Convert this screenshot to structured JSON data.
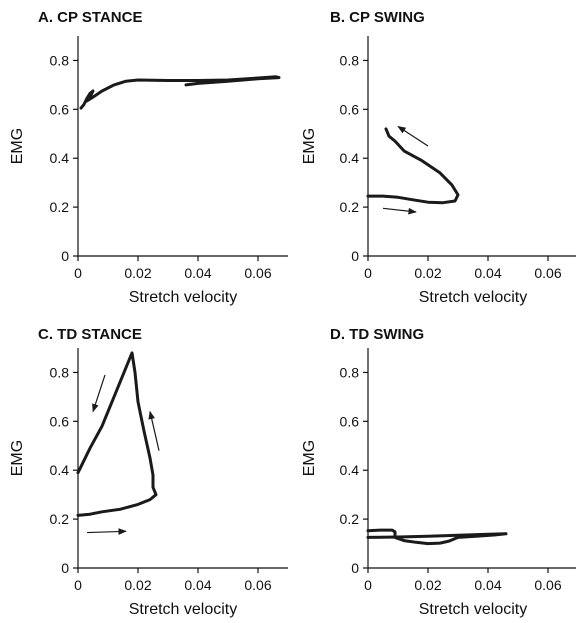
{
  "chart_data": [
    {
      "type": "line",
      "title": "A. CP STANCE",
      "xlabel": "Stretch velocity",
      "ylabel": "EMG",
      "xlim": [
        0,
        0.07
      ],
      "ylim": [
        0,
        0.9
      ],
      "xticks": [
        "0",
        "0.02",
        "0.04",
        "0.06"
      ],
      "yticks": [
        "0",
        "0.2",
        "0.4",
        "0.6",
        "0.8"
      ],
      "series": [
        {
          "x": [
            0.001,
            0.002,
            0.003,
            0.004,
            0.005,
            0.004,
            0.003,
            0.005,
            0.008,
            0.012,
            0.016,
            0.02,
            0.03,
            0.04,
            0.05,
            0.06,
            0.066,
            0.067,
            0.06,
            0.05,
            0.04,
            0.036
          ],
          "y": [
            0.605,
            0.62,
            0.645,
            0.665,
            0.675,
            0.65,
            0.635,
            0.65,
            0.675,
            0.7,
            0.715,
            0.72,
            0.718,
            0.718,
            0.72,
            0.728,
            0.733,
            0.73,
            0.725,
            0.715,
            0.706,
            0.7
          ]
        }
      ],
      "arrows": []
    },
    {
      "type": "line",
      "title": "B. CP SWING",
      "xlabel": "Stretch velocity",
      "ylabel": "EMG",
      "xlim": [
        0,
        0.07
      ],
      "ylim": [
        0,
        0.9
      ],
      "xticks": [
        "0",
        "0.02",
        "0.04",
        "0.06"
      ],
      "yticks": [
        "0",
        "0.2",
        "0.4",
        "0.6",
        "0.8"
      ],
      "series": [
        {
          "x": [
            0.0,
            0.005,
            0.01,
            0.015,
            0.02,
            0.025,
            0.029,
            0.03,
            0.028,
            0.024,
            0.018,
            0.012,
            0.009,
            0.007,
            0.006
          ],
          "y": [
            0.245,
            0.245,
            0.24,
            0.23,
            0.22,
            0.218,
            0.225,
            0.25,
            0.29,
            0.34,
            0.39,
            0.43,
            0.47,
            0.49,
            0.52
          ]
        }
      ],
      "arrows": [
        {
          "x1": 0.02,
          "y1": 0.45,
          "x2": 0.01,
          "y2": 0.53
        },
        {
          "x1": 0.005,
          "y1": 0.195,
          "x2": 0.016,
          "y2": 0.18
        }
      ]
    },
    {
      "type": "line",
      "title": "C. TD STANCE",
      "xlabel": "Stretch velocity",
      "ylabel": "EMG",
      "xlim": [
        0,
        0.07
      ],
      "ylim": [
        0,
        0.9
      ],
      "xticks": [
        "0",
        "0.02",
        "0.04",
        "0.06"
      ],
      "yticks": [
        "0",
        "0.2",
        "0.4",
        "0.6",
        "0.8"
      ],
      "series": [
        {
          "x": [
            0.0,
            0.004,
            0.008,
            0.012,
            0.016,
            0.018,
            0.019,
            0.02,
            0.022,
            0.024,
            0.025,
            0.025,
            0.026,
            0.024,
            0.02,
            0.014,
            0.008,
            0.004,
            0.0
          ],
          "y": [
            0.39,
            0.49,
            0.58,
            0.7,
            0.82,
            0.88,
            0.8,
            0.68,
            0.56,
            0.45,
            0.38,
            0.33,
            0.3,
            0.28,
            0.26,
            0.24,
            0.23,
            0.22,
            0.215
          ]
        }
      ],
      "arrows": [
        {
          "x1": 0.009,
          "y1": 0.79,
          "x2": 0.005,
          "y2": 0.64
        },
        {
          "x1": 0.027,
          "y1": 0.48,
          "x2": 0.024,
          "y2": 0.64
        },
        {
          "x1": 0.003,
          "y1": 0.145,
          "x2": 0.016,
          "y2": 0.15
        }
      ]
    },
    {
      "type": "line",
      "title": "D. TD SWING",
      "xlabel": "Stretch velocity",
      "ylabel": "EMG",
      "xlim": [
        0,
        0.07
      ],
      "ylim": [
        0,
        0.9
      ],
      "xticks": [
        "0",
        "0.02",
        "0.04",
        "0.06"
      ],
      "yticks": [
        "0",
        "0.2",
        "0.4",
        "0.6",
        "0.8"
      ],
      "series": [
        {
          "x": [
            0.0,
            0.004,
            0.008,
            0.009,
            0.009,
            0.012,
            0.016,
            0.02,
            0.024,
            0.027,
            0.03,
            0.036,
            0.042,
            0.046,
            0.04,
            0.03,
            0.02,
            0.01,
            0.0
          ],
          "y": [
            0.152,
            0.155,
            0.155,
            0.148,
            0.125,
            0.112,
            0.105,
            0.1,
            0.102,
            0.11,
            0.125,
            0.13,
            0.135,
            0.14,
            0.138,
            0.134,
            0.13,
            0.127,
            0.125
          ]
        }
      ],
      "arrows": []
    }
  ]
}
